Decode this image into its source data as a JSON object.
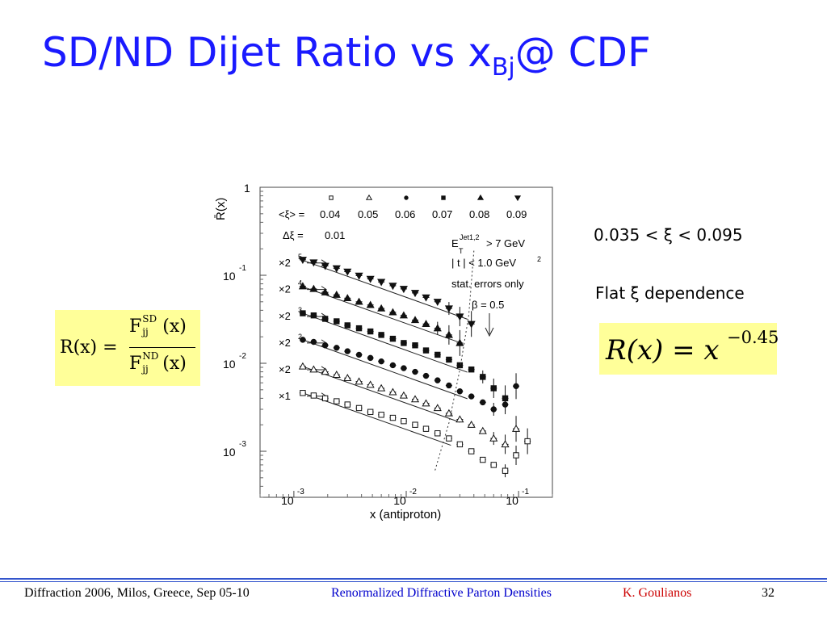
{
  "slide": {
    "title_main": "SD/ND Dijet Ratio vs x",
    "title_sub": "Bj",
    "title_tail": "@ CDF",
    "note_range": "0.035 < ξ < 0.095",
    "note_flat": "Flat ξ dependence",
    "eq1": {
      "lhs": "R(x) =",
      "F": "F",
      "jj": "jj",
      "sd": "SD",
      "nd": "ND",
      "arg": "(x)"
    },
    "eq2": {
      "body": "R(x) = x",
      "exp": "−0.45"
    }
  },
  "footer": {
    "left": "Diffraction 2006, Milos, Greece, Sep 05-10",
    "center": "Renormalized Diffractive Parton Densities",
    "author": "K. Goulianos",
    "page": "32"
  },
  "colors": {
    "title": "#1a1aff",
    "footer_link": "#0000cc",
    "footer_author": "#cc0000",
    "eq_bg": "#ffff99"
  },
  "chart_data": {
    "type": "scatter",
    "ylabel": "R̄(x)",
    "xlabel": "x (antiproton)",
    "x_scale": "log",
    "y_scale": "log",
    "xlim": [
      0.0005,
      0.2
    ],
    "ylim": [
      0.0003,
      1
    ],
    "x_ticks": [
      {
        "value": 0.001,
        "base": "10",
        "exp": "-3"
      },
      {
        "value": 0.01,
        "base": "10",
        "exp": "-2"
      },
      {
        "value": 0.1,
        "base": "10",
        "exp": "-1"
      }
    ],
    "y_ticks": [
      {
        "value": 1,
        "base": "1",
        "exp": ""
      },
      {
        "value": 0.1,
        "base": "10",
        "exp": "-1"
      },
      {
        "value": 0.01,
        "base": "10",
        "exp": "-2"
      },
      {
        "value": 0.001,
        "base": "10",
        "exp": "-3"
      }
    ],
    "legend": {
      "xi_label": "<ξ> =",
      "dxi_label": "Δξ =",
      "dxi_value": "0.01",
      "entries": [
        {
          "xi": "0.04",
          "marker": "open-square"
        },
        {
          "xi": "0.05",
          "marker": "open-triangle"
        },
        {
          "xi": "0.06",
          "marker": "filled-circle"
        },
        {
          "xi": "0.07",
          "marker": "filled-square"
        },
        {
          "xi": "0.08",
          "marker": "filled-triangle"
        },
        {
          "xi": "0.09",
          "marker": "filled-down-triangle"
        }
      ]
    },
    "cuts": {
      "et_main": "E",
      "et_sub": "T",
      "et_sup": "Jet1,2",
      "et_cut": "> 7 GeV",
      "t_cut": "| t | < 1.0 GeV",
      "t_exp": "2",
      "errors": "stat. errors only",
      "beta": "β = 0.5"
    },
    "series": [
      {
        "name": "×2⁵",
        "label_base": "×2",
        "label_exp": "5",
        "marker": "filled-down-triangle",
        "fit_x": [
          0.0012,
          0.035
        ],
        "fit_y": [
          0.148,
          0.0317
        ],
        "x": [
          0.0012,
          0.0015,
          0.0019,
          0.0024,
          0.003,
          0.0038,
          0.0048,
          0.006,
          0.0076,
          0.0095,
          0.012,
          0.015,
          0.019,
          0.024,
          0.03,
          0.038
        ],
        "y": [
          0.15,
          0.14,
          0.128,
          0.12,
          0.11,
          0.099,
          0.091,
          0.084,
          0.076,
          0.07,
          0.063,
          0.056,
          0.05,
          0.042,
          0.034,
          0.028
        ]
      },
      {
        "name": "×2⁴",
        "label_base": "×2",
        "label_exp": "4",
        "marker": "filled-triangle",
        "fit_x": [
          0.0012,
          0.03
        ],
        "fit_y": [
          0.074,
          0.0172
        ],
        "x": [
          0.0012,
          0.0015,
          0.0019,
          0.0024,
          0.003,
          0.0038,
          0.0048,
          0.006,
          0.0076,
          0.0095,
          0.012,
          0.015,
          0.019,
          0.024,
          0.03
        ],
        "y": [
          0.075,
          0.07,
          0.064,
          0.06,
          0.055,
          0.05,
          0.046,
          0.042,
          0.038,
          0.035,
          0.031,
          0.028,
          0.025,
          0.021,
          0.017
        ]
      },
      {
        "name": "×2³",
        "label_base": "×2",
        "label_exp": "3",
        "marker": "filled-square",
        "fit_x": [
          0.0012,
          0.035
        ],
        "fit_y": [
          0.037,
          0.00792
        ],
        "x": [
          0.0012,
          0.0015,
          0.0019,
          0.0024,
          0.003,
          0.0038,
          0.0048,
          0.006,
          0.0076,
          0.0095,
          0.012,
          0.015,
          0.019,
          0.024,
          0.03,
          0.038,
          0.048,
          0.06,
          0.076
        ],
        "y": [
          0.037,
          0.035,
          0.032,
          0.03,
          0.027,
          0.025,
          0.023,
          0.021,
          0.019,
          0.017,
          0.016,
          0.014,
          0.0125,
          0.011,
          0.0095,
          0.0085,
          0.007,
          0.0052,
          0.004
        ]
      },
      {
        "name": "×2²",
        "label_base": "×2",
        "label_exp": "2",
        "marker": "filled-circle",
        "fit_x": [
          0.0012,
          0.035
        ],
        "fit_y": [
          0.0185,
          0.00396
        ],
        "x": [
          0.0012,
          0.0015,
          0.0019,
          0.0024,
          0.003,
          0.0038,
          0.0048,
          0.006,
          0.0076,
          0.0095,
          0.012,
          0.015,
          0.019,
          0.024,
          0.03,
          0.038,
          0.048,
          0.06,
          0.076,
          0.095
        ],
        "y": [
          0.0185,
          0.0175,
          0.016,
          0.015,
          0.0137,
          0.0125,
          0.0115,
          0.0105,
          0.0095,
          0.0088,
          0.008,
          0.0072,
          0.0064,
          0.0056,
          0.0048,
          0.0042,
          0.0036,
          0.003,
          0.0034,
          0.0055
        ]
      },
      {
        "name": "×2",
        "label_base": "×2",
        "label_exp": "",
        "marker": "open-triangle",
        "fit_x": [
          0.0012,
          0.03
        ],
        "fit_y": [
          0.0092,
          0.00214
        ],
        "x": [
          0.0012,
          0.0015,
          0.0019,
          0.0024,
          0.003,
          0.0038,
          0.0048,
          0.006,
          0.0076,
          0.0095,
          0.012,
          0.015,
          0.019,
          0.024,
          0.03,
          0.038,
          0.048,
          0.06,
          0.076,
          0.095
        ],
        "y": [
          0.0092,
          0.0085,
          0.008,
          0.0074,
          0.0068,
          0.0062,
          0.0057,
          0.0052,
          0.0047,
          0.0043,
          0.0039,
          0.0035,
          0.0031,
          0.0027,
          0.0023,
          0.002,
          0.0017,
          0.0014,
          0.0012,
          0.0018
        ]
      },
      {
        "name": "×1",
        "label_base": "×1",
        "label_exp": "",
        "marker": "open-square",
        "fit_x": [
          0.0012,
          0.025
        ],
        "fit_y": [
          0.0046,
          0.00117
        ],
        "x": [
          0.0012,
          0.0015,
          0.0019,
          0.0024,
          0.003,
          0.0038,
          0.0048,
          0.006,
          0.0076,
          0.0095,
          0.012,
          0.015,
          0.019,
          0.024,
          0.03,
          0.038,
          0.048,
          0.06,
          0.076,
          0.095,
          0.12
        ],
        "y": [
          0.0046,
          0.0043,
          0.004,
          0.0037,
          0.0034,
          0.0031,
          0.0028,
          0.0026,
          0.0024,
          0.0022,
          0.002,
          0.0018,
          0.0016,
          0.0014,
          0.0012,
          0.001,
          0.0008,
          0.0007,
          0.0006,
          0.0009,
          0.0013
        ]
      }
    ]
  }
}
